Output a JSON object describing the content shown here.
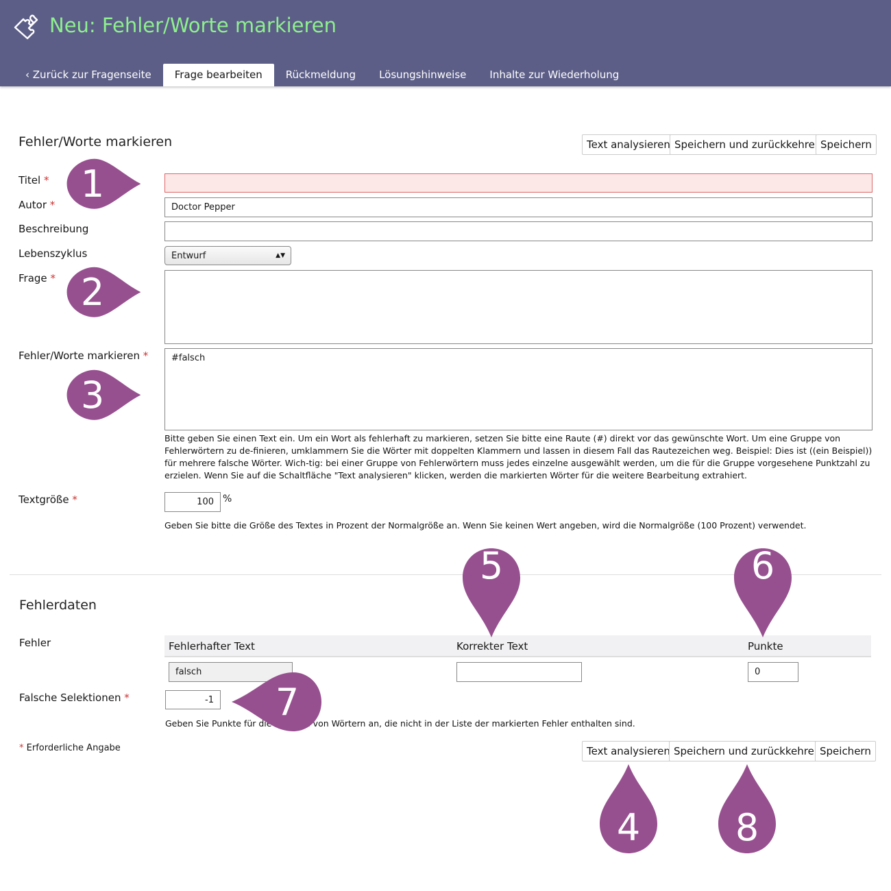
{
  "header": {
    "title": "Neu: Fehler/Worte markieren",
    "logo_icon": "puzzle-icon"
  },
  "tabs": [
    {
      "label": "Zurück zur Fragenseite"
    },
    {
      "label": "Frage bearbeiten",
      "active": true
    },
    {
      "label": "Rückmeldung"
    },
    {
      "label": "Lösungshinweise"
    },
    {
      "label": "Inhalte zur Wiederholung"
    }
  ],
  "form": {
    "heading": "Fehler/Worte markieren",
    "buttons": {
      "analyze": "Text analysieren",
      "save_return": "Speichern und zurückkehren",
      "save": "Speichern"
    },
    "required_mark": "*",
    "titel": {
      "label": "Titel",
      "value": ""
    },
    "autor": {
      "label": "Autor",
      "value": "Doctor Pepper"
    },
    "beschreibung": {
      "label": "Beschreibung",
      "value": ""
    },
    "lebenszyklus": {
      "label": "Lebenszyklus",
      "value": "Entwurf"
    },
    "frage": {
      "label": "Frage",
      "value": ""
    },
    "fehlerworte": {
      "label": "Fehler/Worte markieren",
      "value": "#falsch",
      "help": "Bitte geben Sie einen Text ein. Um ein Wort als fehlerhaft zu markieren, setzen Sie bitte eine Raute (#) direkt vor das gewünschte Wort. Um eine Gruppe von Fehlerwörtern zu de-finieren, umklammern Sie die Wörter mit doppelten Klammern und lassen in diesem Fall das Rautezeichen weg. Beispiel: Dies ist ((ein Beispiel)) für mehrere falsche Wörter. Wich-tig: bei einer Gruppe von Fehlerwörtern muss jedes einzelne ausgewählt werden, um die für die Gruppe vorgesehene Punktzahl zu erzielen. Wenn Sie auf die Schaltfläche \"Text analysieren\" klicken, werden die markierten Wörter für die weitere Bearbeitung extrahiert."
    },
    "textgroesse": {
      "label": "Textgröße",
      "value": "100",
      "unit": "%",
      "help": "Geben Sie bitte die Größe des Textes in Prozent der Normalgröße an. Wenn Sie keinen Wert angeben, wird die Normalgröße (100 Prozent) verwendet."
    }
  },
  "fehlerdaten": {
    "heading": "Fehlerdaten",
    "fehler_label": "Fehler",
    "columns": [
      "Fehlerhafter Text",
      "Korrekter Text",
      "Punkte"
    ],
    "rows": [
      {
        "wrong": "falsch",
        "correct": "",
        "points": "0"
      }
    ],
    "falsche": {
      "label": "Falsche Selektionen",
      "value": "-1",
      "help": "Geben Sie Punkte für die Auswahl von Wörtern an, die nicht in der Liste der markierten Fehler enthalten sind."
    },
    "required_note": "Erforderliche Angabe"
  },
  "markers": [
    "1",
    "2",
    "3",
    "4",
    "5",
    "6",
    "7",
    "8"
  ],
  "colors": {
    "header": "#5c5e87",
    "title": "#8ef08e",
    "marker": "#97508f",
    "required": "#cc3333",
    "error_bg": "#fde8e8"
  }
}
